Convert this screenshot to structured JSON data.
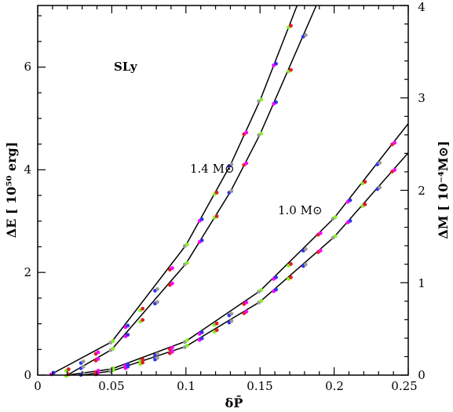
{
  "chart_data": {
    "type": "scatter",
    "annotation_eos": "SLy",
    "xlabel": "δP̄",
    "ylabel_left": "ΔE [ 10⁵⁰ erg]",
    "ylabel_right": "ΔM [ 10⁻⁴M⊙]",
    "curve_labels": [
      "1.4 M⊙",
      "1.0 M⊙"
    ],
    "xlim": [
      0,
      0.25
    ],
    "ylim_left": [
      0,
      7.2
    ],
    "ylim_right": [
      0,
      4.0
    ],
    "x_ticks": [
      "0",
      "0.05",
      "0.1",
      "0.15",
      "0.2",
      "0.25"
    ],
    "y_ticks_left": [
      "0",
      "2",
      "4",
      "6"
    ],
    "y_ticks_right": [
      "0",
      "1",
      "2",
      "3",
      "4"
    ],
    "marker_colors": [
      "#ff00ff",
      "#88ee22",
      "#3333ee",
      "#dd2222",
      "#999999"
    ],
    "fit_curves": [
      {
        "mass": "1.4",
        "branch": "upper",
        "x": [
          0.01,
          0.05,
          0.1,
          0.13,
          0.15,
          0.175
        ],
        "y": [
          0.03,
          0.65,
          2.53,
          4.09,
          5.35,
          7.2
        ]
      },
      {
        "mass": "1.4",
        "branch": "lower",
        "x": [
          0.02,
          0.05,
          0.1,
          0.13,
          0.15,
          0.188
        ],
        "y": [
          0.0,
          0.5,
          2.17,
          3.57,
          4.69,
          7.2
        ]
      },
      {
        "mass": "1.0",
        "branch": "upper",
        "x": [
          0.02,
          0.05,
          0.1,
          0.15,
          0.2,
          0.25
        ],
        "y": [
          0.0,
          0.12,
          0.66,
          1.64,
          3.06,
          4.9
        ]
      },
      {
        "mass": "1.0",
        "branch": "lower",
        "x": [
          0.03,
          0.05,
          0.1,
          0.15,
          0.2,
          0.25
        ],
        "y": [
          0.0,
          0.08,
          0.56,
          1.43,
          2.69,
          4.33
        ]
      }
    ],
    "series": [
      {
        "x": [
          0.01,
          0.02,
          0.03,
          0.04,
          0.05,
          0.06,
          0.07,
          0.08,
          0.09,
          0.1,
          0.11,
          0.12,
          0.13,
          0.14,
          0.15,
          0.16,
          0.17
        ],
        "y": [
          0.03,
          0.1,
          0.25,
          0.43,
          0.65,
          0.95,
          1.28,
          1.66,
          2.07,
          2.53,
          3.02,
          3.54,
          4.09,
          4.71,
          5.35,
          6.05,
          6.79
        ]
      },
      {
        "x": [
          0.02,
          0.03,
          0.04,
          0.05,
          0.06,
          0.07,
          0.08,
          0.09,
          0.1,
          0.11,
          0.12,
          0.13,
          0.14,
          0.15,
          0.16,
          0.17,
          0.18
        ],
        "y": [
          0.0,
          0.15,
          0.3,
          0.5,
          0.77,
          1.06,
          1.41,
          1.77,
          2.17,
          2.61,
          3.08,
          3.57,
          4.11,
          4.69,
          5.3,
          5.93,
          6.61
        ]
      },
      {
        "x": [
          0.03,
          0.04,
          0.05,
          0.06,
          0.07,
          0.08,
          0.09,
          0.1,
          0.11,
          0.12,
          0.13,
          0.14,
          0.15,
          0.16,
          0.17,
          0.18,
          0.19,
          0.2,
          0.21,
          0.22,
          0.23,
          0.24
        ],
        "y": [
          0.02,
          0.07,
          0.12,
          0.2,
          0.29,
          0.4,
          0.52,
          0.66,
          0.82,
          0.99,
          1.18,
          1.4,
          1.64,
          1.89,
          2.15,
          2.44,
          2.75,
          3.06,
          3.39,
          3.75,
          4.12,
          4.51
        ]
      },
      {
        "x": [
          0.04,
          0.05,
          0.06,
          0.07,
          0.08,
          0.09,
          0.1,
          0.11,
          0.12,
          0.13,
          0.14,
          0.15,
          0.16,
          0.17,
          0.18,
          0.19,
          0.2,
          0.21,
          0.22,
          0.23,
          0.24
        ],
        "y": [
          0.03,
          0.08,
          0.15,
          0.23,
          0.32,
          0.44,
          0.56,
          0.7,
          0.86,
          1.04,
          1.22,
          1.43,
          1.65,
          1.89,
          2.14,
          2.41,
          2.69,
          2.99,
          3.31,
          3.64,
          3.98
        ]
      }
    ]
  }
}
